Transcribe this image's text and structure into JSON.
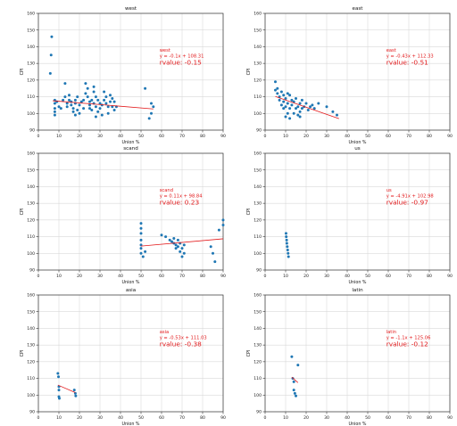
{
  "colors": {
    "points": "#1f77b4",
    "fit_line": "#e31a1c",
    "annotation": "#e31a1c",
    "grid": "#d9d9d9",
    "axis": "#333333"
  },
  "chart_data": [
    {
      "type": "scatter",
      "title": "west",
      "xlabel": "Union %",
      "ylabel": "CPI",
      "xlim": [
        0,
        90
      ],
      "ylim": [
        90,
        160
      ],
      "xticks": [
        0,
        10,
        20,
        30,
        40,
        50,
        60,
        70,
        80,
        90
      ],
      "yticks": [
        90,
        100,
        110,
        120,
        130,
        140,
        150,
        160
      ],
      "grid": true,
      "annotation": {
        "group": "west",
        "equation": "y = -0.1x + 108.31",
        "rvalue": "rvalue: -0.15",
        "anchor_x": 59,
        "anchor_y": 137
      },
      "fit": {
        "slope": -0.1,
        "intercept": 108.31,
        "x_range": [
          7,
          56
        ]
      },
      "points": [
        [
          6.5,
          146
        ],
        [
          6.2,
          135
        ],
        [
          5.8,
          124
        ],
        [
          8,
          108
        ],
        [
          8,
          106
        ],
        [
          8,
          103
        ],
        [
          8,
          101
        ],
        [
          8,
          99
        ],
        [
          9,
          107
        ],
        [
          10,
          104
        ],
        [
          11,
          103
        ],
        [
          12,
          108
        ],
        [
          13,
          118
        ],
        [
          13,
          110
        ],
        [
          14,
          106
        ],
        [
          14,
          104
        ],
        [
          15,
          108
        ],
        [
          15,
          111
        ],
        [
          16,
          105
        ],
        [
          16,
          107
        ],
        [
          17,
          101
        ],
        [
          17,
          103
        ],
        [
          18,
          99
        ],
        [
          18,
          106
        ],
        [
          18,
          108
        ],
        [
          19,
          102
        ],
        [
          19,
          110
        ],
        [
          20,
          100
        ],
        [
          20,
          105
        ],
        [
          21,
          107
        ],
        [
          22,
          103
        ],
        [
          22,
          108
        ],
        [
          23,
          112
        ],
        [
          23,
          118
        ],
        [
          24,
          115
        ],
        [
          24,
          110
        ],
        [
          25,
          103
        ],
        [
          25,
          105
        ],
        [
          25,
          107
        ],
        [
          26,
          108
        ],
        [
          26,
          102
        ],
        [
          27,
          106
        ],
        [
          27,
          113
        ],
        [
          27,
          116
        ],
        [
          28,
          98
        ],
        [
          28,
          104
        ],
        [
          28,
          110
        ],
        [
          29,
          101
        ],
        [
          29,
          108
        ],
        [
          30,
          106
        ],
        [
          30,
          103
        ],
        [
          31,
          99
        ],
        [
          31,
          105
        ],
        [
          32,
          108
        ],
        [
          32,
          113
        ],
        [
          33,
          110
        ],
        [
          33,
          106
        ],
        [
          34,
          104
        ],
        [
          34,
          100
        ],
        [
          35,
          107
        ],
        [
          35,
          111
        ],
        [
          36,
          104
        ],
        [
          36,
          109
        ],
        [
          37,
          102
        ],
        [
          37,
          107
        ],
        [
          38,
          104
        ],
        [
          52,
          115
        ],
        [
          54,
          97
        ],
        [
          55,
          100
        ],
        [
          55,
          106
        ],
        [
          56,
          104
        ]
      ]
    },
    {
      "type": "scatter",
      "title": "east",
      "xlabel": "Union %",
      "ylabel": "CPI",
      "xlim": [
        0,
        90
      ],
      "ylim": [
        90,
        160
      ],
      "xticks": [
        0,
        10,
        20,
        30,
        40,
        50,
        60,
        70,
        80,
        90
      ],
      "yticks": [
        90,
        100,
        110,
        120,
        130,
        140,
        150,
        160
      ],
      "grid": true,
      "annotation": {
        "group": "east",
        "equation": "y = -0.43x + 112.33",
        "rvalue": "rvalue: -0.51",
        "anchor_x": 59,
        "anchor_y": 137
      },
      "fit": {
        "slope": -0.43,
        "intercept": 112.33,
        "x_range": [
          5,
          36
        ]
      },
      "points": [
        [
          5,
          119
        ],
        [
          5,
          114
        ],
        [
          6,
          112
        ],
        [
          6,
          115
        ],
        [
          7,
          108
        ],
        [
          7,
          110
        ],
        [
          8,
          113
        ],
        [
          8,
          105
        ],
        [
          9,
          111
        ],
        [
          9,
          103
        ],
        [
          9,
          107
        ],
        [
          10,
          98
        ],
        [
          10,
          104
        ],
        [
          10,
          109
        ],
        [
          11,
          112
        ],
        [
          11,
          100
        ],
        [
          11,
          106
        ],
        [
          12,
          97
        ],
        [
          12,
          103
        ],
        [
          12,
          111
        ],
        [
          13,
          105
        ],
        [
          13,
          108
        ],
        [
          14,
          100
        ],
        [
          14,
          107
        ],
        [
          15,
          103
        ],
        [
          15,
          109
        ],
        [
          16,
          99
        ],
        [
          16,
          104
        ],
        [
          17,
          98
        ],
        [
          17,
          101
        ],
        [
          17,
          106
        ],
        [
          18,
          103
        ],
        [
          18,
          108
        ],
        [
          19,
          104
        ],
        [
          20,
          106
        ],
        [
          21,
          102
        ],
        [
          22,
          104
        ],
        [
          23,
          105
        ],
        [
          24,
          103
        ],
        [
          26,
          106
        ],
        [
          30,
          104
        ],
        [
          33,
          101
        ],
        [
          35,
          99
        ]
      ]
    },
    {
      "type": "scatter",
      "title": "scand",
      "xlabel": "Union %",
      "ylabel": "CPI",
      "xlim": [
        0,
        90
      ],
      "ylim": [
        90,
        160
      ],
      "xticks": [
        0,
        10,
        20,
        30,
        40,
        50,
        60,
        70,
        80,
        90
      ],
      "yticks": [
        90,
        100,
        110,
        120,
        130,
        140,
        150,
        160
      ],
      "grid": true,
      "annotation": {
        "group": "scand",
        "equation": "y = 0.11x + 98.84",
        "rvalue": "rvalue: 0.23",
        "anchor_x": 59,
        "anchor_y": 137
      },
      "fit": {
        "slope": 0.11,
        "intercept": 98.84,
        "x_range": [
          50,
          90
        ]
      },
      "points": [
        [
          50,
          118
        ],
        [
          50,
          115
        ],
        [
          50,
          112
        ],
        [
          50,
          108
        ],
        [
          50,
          105
        ],
        [
          50,
          103
        ],
        [
          50,
          100
        ],
        [
          51,
          98
        ],
        [
          52,
          101
        ],
        [
          60,
          111
        ],
        [
          62,
          110
        ],
        [
          64,
          108
        ],
        [
          65,
          107
        ],
        [
          66,
          106
        ],
        [
          66,
          109
        ],
        [
          67,
          105
        ],
        [
          67,
          103
        ],
        [
          68,
          104
        ],
        [
          68,
          108
        ],
        [
          69,
          101
        ],
        [
          69,
          106
        ],
        [
          70,
          98
        ],
        [
          70,
          103
        ],
        [
          71,
          100
        ],
        [
          71,
          105
        ],
        [
          84,
          104
        ],
        [
          85,
          100
        ],
        [
          86,
          95
        ],
        [
          88,
          114
        ],
        [
          90,
          117
        ],
        [
          90,
          120
        ]
      ]
    },
    {
      "type": "scatter",
      "title": "us",
      "xlabel": "Union %",
      "ylabel": "CPI",
      "xlim": [
        0,
        90
      ],
      "ylim": [
        90,
        160
      ],
      "xticks": [
        0,
        10,
        20,
        30,
        40,
        50,
        60,
        70,
        80,
        90
      ],
      "yticks": [
        90,
        100,
        110,
        120,
        130,
        140,
        150,
        160
      ],
      "grid": true,
      "annotation": {
        "group": "us",
        "equation": "y = -4.91x + 102.98",
        "rvalue": "rvalue: -0.97",
        "anchor_x": 59,
        "anchor_y": 137
      },
      "fit": {
        "slope": -4.91,
        "intercept": 102.98,
        "x_range": [
          10.4,
          11.2
        ]
      },
      "points": [
        [
          10.2,
          112
        ],
        [
          10.3,
          110
        ],
        [
          10.5,
          108
        ],
        [
          10.6,
          106
        ],
        [
          10.8,
          104
        ],
        [
          11,
          102
        ],
        [
          11.2,
          100
        ],
        [
          11.4,
          98
        ]
      ]
    },
    {
      "type": "scatter",
      "title": "asia",
      "xlabel": "Union %",
      "ylabel": "CPI",
      "xlim": [
        0,
        90
      ],
      "ylim": [
        90,
        160
      ],
      "xticks": [
        0,
        10,
        20,
        30,
        40,
        50,
        60,
        70,
        80,
        90
      ],
      "yticks": [
        90,
        100,
        110,
        120,
        130,
        140,
        150,
        160
      ],
      "grid": true,
      "annotation": {
        "group": "asia",
        "equation": "y = -0.53x + 111.03",
        "rvalue": "rvalue: -0.38",
        "anchor_x": 59,
        "anchor_y": 137
      },
      "fit": {
        "slope": -0.53,
        "intercept": 111.03,
        "x_range": [
          9.5,
          18
        ]
      },
      "points": [
        [
          9.5,
          113
        ],
        [
          9.8,
          111
        ],
        [
          10,
          105
        ],
        [
          10,
          103
        ],
        [
          10,
          99
        ],
        [
          10.2,
          98
        ],
        [
          17.5,
          103
        ],
        [
          18,
          101
        ],
        [
          18.2,
          99.5
        ]
      ]
    },
    {
      "type": "scatter",
      "title": "latin",
      "xlabel": "Union %",
      "ylabel": "CPI",
      "xlim": [
        0,
        90
      ],
      "ylim": [
        90,
        160
      ],
      "xticks": [
        0,
        10,
        20,
        30,
        40,
        50,
        60,
        70,
        80,
        90
      ],
      "yticks": [
        90,
        100,
        110,
        120,
        130,
        140,
        150,
        160
      ],
      "grid": true,
      "annotation": {
        "group": "latin",
        "equation": "y = -1.1x + 125.06",
        "rvalue": "rvalue: -0.12",
        "anchor_x": 59,
        "anchor_y": 137
      },
      "fit": {
        "slope": -1.1,
        "intercept": 125.06,
        "x_range": [
          13,
          16
        ]
      },
      "points": [
        [
          13,
          123
        ],
        [
          13.5,
          110
        ],
        [
          14,
          108
        ],
        [
          14,
          103
        ],
        [
          14.5,
          101
        ],
        [
          15,
          99.5
        ],
        [
          16,
          118
        ]
      ]
    }
  ]
}
